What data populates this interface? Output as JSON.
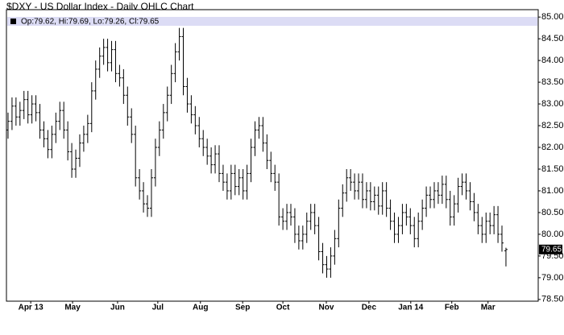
{
  "chart_data": {
    "type": "ohlc",
    "title": "$DXY - US Dollar Index - Daily OHLC Chart",
    "xlim": [
      -0.4,
      133.1
    ],
    "ylim": [
      78.46,
      85.17
    ],
    "xticks": [
      {
        "value": 5.7,
        "label": "Apr 13"
      },
      {
        "value": 16.2,
        "label": "May"
      },
      {
        "value": 27.5,
        "label": "Jun"
      },
      {
        "value": 37.6,
        "label": "Jul"
      },
      {
        "value": 48.3,
        "label": "Aug"
      },
      {
        "value": 58.9,
        "label": "Sep"
      },
      {
        "value": 69,
        "label": "Oct"
      },
      {
        "value": 79.9,
        "label": "Nov"
      },
      {
        "value": 90.6,
        "label": "Dec"
      },
      {
        "value": 101.1,
        "label": "Jan 14"
      },
      {
        "value": 111.4,
        "label": "Feb"
      },
      {
        "value": 120.5,
        "label": "Mar"
      }
    ],
    "yticks": [
      {
        "value": 78.5,
        "label": "78.50"
      },
      {
        "value": 79,
        "label": "79.00"
      },
      {
        "value": 79.5,
        "label": "79.50"
      },
      {
        "value": 80,
        "label": "80.00"
      },
      {
        "value": 80.5,
        "label": "80.50"
      },
      {
        "value": 81,
        "label": "81.00"
      },
      {
        "value": 81.5,
        "label": "81.50"
      },
      {
        "value": 82,
        "label": "82.00"
      },
      {
        "value": 82.5,
        "label": "82.50"
      },
      {
        "value": 83,
        "label": "83.00"
      },
      {
        "value": 83.5,
        "label": "83.50"
      },
      {
        "value": 84,
        "label": "84.00"
      },
      {
        "value": 84.5,
        "label": "84.50"
      },
      {
        "value": 85,
        "label": "85.00"
      }
    ],
    "grid": false,
    "series": [
      {
        "name": "Op:79.62, Hi:79.69, Lo:79.26, Cl:79.65",
        "color": "#000000",
        "open": [
          82.4,
          82.6,
          82.95,
          82.7,
          82.85,
          83.1,
          82.75,
          83.0,
          82.8,
          82.4,
          82.2,
          81.95,
          82.3,
          82.6,
          82.85,
          82.4,
          81.9,
          81.5,
          81.75,
          82.1,
          82.3,
          82.55,
          83.3,
          83.8,
          84.1,
          84.3,
          83.95,
          84.25,
          83.7,
          83.6,
          83.2,
          82.7,
          82.3,
          81.3,
          81.0,
          80.7,
          80.6,
          81.3,
          82.0,
          82.4,
          82.8,
          83.2,
          83.7,
          84.2,
          84.55,
          83.4,
          83.0,
          82.75,
          82.5,
          82.2,
          82.0,
          81.8,
          81.6,
          81.85,
          81.4,
          81.2,
          81.0,
          81.4,
          81.1,
          81.3,
          81.0,
          81.4,
          82.0,
          82.4,
          82.5,
          82.1,
          81.7,
          81.4,
          81.2,
          80.4,
          80.3,
          80.5,
          80.4,
          80.0,
          79.85,
          80.0,
          80.3,
          80.5,
          80.2,
          79.6,
          79.3,
          79.2,
          79.5,
          79.9,
          80.6,
          80.95,
          81.3,
          81.2,
          81.0,
          81.2,
          80.8,
          81.0,
          80.75,
          80.9,
          80.65,
          81.0,
          80.6,
          80.3,
          80.0,
          80.2,
          80.5,
          80.4,
          80.2,
          79.9,
          80.3,
          80.6,
          80.9,
          80.8,
          81.0,
          80.9,
          81.15,
          80.8,
          80.4,
          80.7,
          81.1,
          81.2,
          81.0,
          80.75,
          80.5,
          80.2,
          80.0,
          80.3,
          80.2,
          80.45,
          80.0,
          79.62
        ],
        "high": [
          82.8,
          83.15,
          83.15,
          83.05,
          83.3,
          83.3,
          83.2,
          83.2,
          83.0,
          82.6,
          82.4,
          82.5,
          82.8,
          83.05,
          83.05,
          82.6,
          82.1,
          81.95,
          82.3,
          82.5,
          82.75,
          83.5,
          84.0,
          84.3,
          84.5,
          84.5,
          84.45,
          84.45,
          83.9,
          83.8,
          83.4,
          82.9,
          82.5,
          81.5,
          81.2,
          80.9,
          81.5,
          82.2,
          82.6,
          83.0,
          83.4,
          83.9,
          84.4,
          84.75,
          84.75,
          83.6,
          83.2,
          82.95,
          82.7,
          82.4,
          82.2,
          82.0,
          82.05,
          82.05,
          81.6,
          81.4,
          81.6,
          81.6,
          81.5,
          81.5,
          81.6,
          82.2,
          82.6,
          82.7,
          82.7,
          82.3,
          81.9,
          81.6,
          81.4,
          80.6,
          80.7,
          80.7,
          80.6,
          80.2,
          80.2,
          80.5,
          80.7,
          80.7,
          80.4,
          79.8,
          79.5,
          79.7,
          80.1,
          80.8,
          81.15,
          81.5,
          81.5,
          81.4,
          81.4,
          81.4,
          81.2,
          81.2,
          81.1,
          81.1,
          81.2,
          81.2,
          80.8,
          80.5,
          80.4,
          80.7,
          80.7,
          80.6,
          80.4,
          80.5,
          80.8,
          81.1,
          81.1,
          81.2,
          81.2,
          81.35,
          81.35,
          81.0,
          80.9,
          81.3,
          81.4,
          81.4,
          81.2,
          80.95,
          80.7,
          80.4,
          80.5,
          80.5,
          80.65,
          80.65,
          80.2,
          79.69
        ],
        "low": [
          82.2,
          82.4,
          82.5,
          82.5,
          82.65,
          82.55,
          82.55,
          82.6,
          82.2,
          82.0,
          81.75,
          81.75,
          82.1,
          82.4,
          82.2,
          81.7,
          81.3,
          81.3,
          81.55,
          81.9,
          82.1,
          82.35,
          83.1,
          83.6,
          83.9,
          83.75,
          83.75,
          83.5,
          83.4,
          83.0,
          82.5,
          82.1,
          81.1,
          80.8,
          80.5,
          80.4,
          80.4,
          81.1,
          81.8,
          82.2,
          82.6,
          83.0,
          83.5,
          84.0,
          83.2,
          82.8,
          82.55,
          82.3,
          82.0,
          81.8,
          81.6,
          81.4,
          81.4,
          81.2,
          81.0,
          80.8,
          80.8,
          80.9,
          80.9,
          80.8,
          80.8,
          81.2,
          81.8,
          82.2,
          81.9,
          81.5,
          81.2,
          81.0,
          80.2,
          80.1,
          80.1,
          80.2,
          79.8,
          79.65,
          79.65,
          79.8,
          80.1,
          80.0,
          79.4,
          79.1,
          79.0,
          79.0,
          79.3,
          79.7,
          80.4,
          80.75,
          81.0,
          80.8,
          80.8,
          80.6,
          80.6,
          80.55,
          80.55,
          80.45,
          80.45,
          80.4,
          80.1,
          79.8,
          79.8,
          80.0,
          80.2,
          80.0,
          79.7,
          79.7,
          80.1,
          80.4,
          80.6,
          80.6,
          80.7,
          80.7,
          80.6,
          80.2,
          80.2,
          80.5,
          80.9,
          80.8,
          80.55,
          80.3,
          80.0,
          79.8,
          79.8,
          80.0,
          80.0,
          79.8,
          79.6,
          79.26
        ],
        "close": [
          82.6,
          82.95,
          82.7,
          82.85,
          83.1,
          82.75,
          83.0,
          82.8,
          82.4,
          82.2,
          81.95,
          82.3,
          82.6,
          82.85,
          82.4,
          81.9,
          81.5,
          81.75,
          82.1,
          82.3,
          82.55,
          83.3,
          83.8,
          84.1,
          84.3,
          83.95,
          84.25,
          83.7,
          83.6,
          83.2,
          82.7,
          82.3,
          81.3,
          81.0,
          80.7,
          80.6,
          81.3,
          82.0,
          82.4,
          82.8,
          83.2,
          83.7,
          84.2,
          84.55,
          83.4,
          83.0,
          82.75,
          82.5,
          82.2,
          82.0,
          81.8,
          81.6,
          81.85,
          81.4,
          81.2,
          81.0,
          81.4,
          81.1,
          81.3,
          81.0,
          81.4,
          82.0,
          82.4,
          82.5,
          82.1,
          81.7,
          81.4,
          81.2,
          80.4,
          80.3,
          80.5,
          80.4,
          80.0,
          79.85,
          80.0,
          80.3,
          80.5,
          80.2,
          79.6,
          79.3,
          79.2,
          79.5,
          79.9,
          80.6,
          80.95,
          81.3,
          81.2,
          81.0,
          81.2,
          80.8,
          81.0,
          80.75,
          80.9,
          80.65,
          81.0,
          80.6,
          80.3,
          80.0,
          80.2,
          80.5,
          80.4,
          80.2,
          79.9,
          80.3,
          80.6,
          80.9,
          80.8,
          81.0,
          80.9,
          81.15,
          80.8,
          80.4,
          80.7,
          81.1,
          81.2,
          81.0,
          80.75,
          80.5,
          80.2,
          80.0,
          80.3,
          80.2,
          80.45,
          80.0,
          79.8,
          79.65
        ]
      }
    ]
  }
}
